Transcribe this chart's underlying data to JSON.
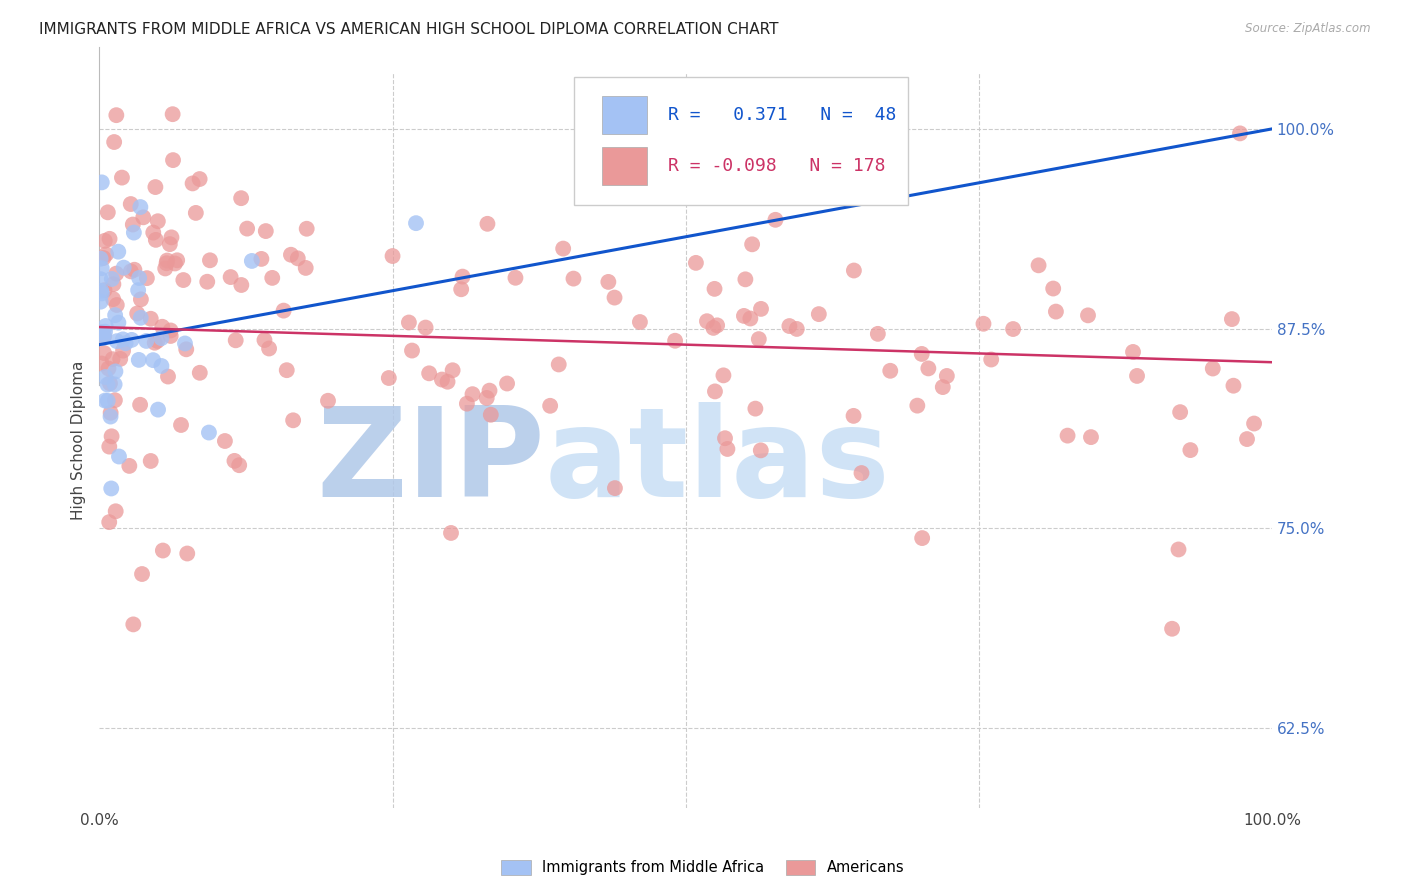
{
  "title": "IMMIGRANTS FROM MIDDLE AFRICA VS AMERICAN HIGH SCHOOL DIPLOMA CORRELATION CHART",
  "source": "Source: ZipAtlas.com",
  "ylabel": "High School Diploma",
  "ytick_labels": [
    "62.5%",
    "75.0%",
    "87.5%",
    "100.0%"
  ],
  "ytick_values": [
    0.625,
    0.75,
    0.875,
    1.0
  ],
  "xlim": [
    0.0,
    1.0
  ],
  "ylim": [
    0.575,
    1.035
  ],
  "legend_r_blue": "0.371",
  "legend_n_blue": "48",
  "legend_r_pink": "-0.098",
  "legend_n_pink": "178",
  "blue_color": "#a4c2f4",
  "pink_color": "#ea9999",
  "blue_line_color": "#1155cc",
  "pink_line_color": "#cc3366",
  "watermark_zip_color": "#b8cfe8",
  "watermark_atlas_color": "#cce0f5",
  "background_color": "#ffffff",
  "grid_color": "#cccccc",
  "title_fontsize": 11,
  "axis_label_fontsize": 10,
  "tick_fontsize": 10,
  "legend_fontsize": 13,
  "right_tick_color": "#4472c4"
}
